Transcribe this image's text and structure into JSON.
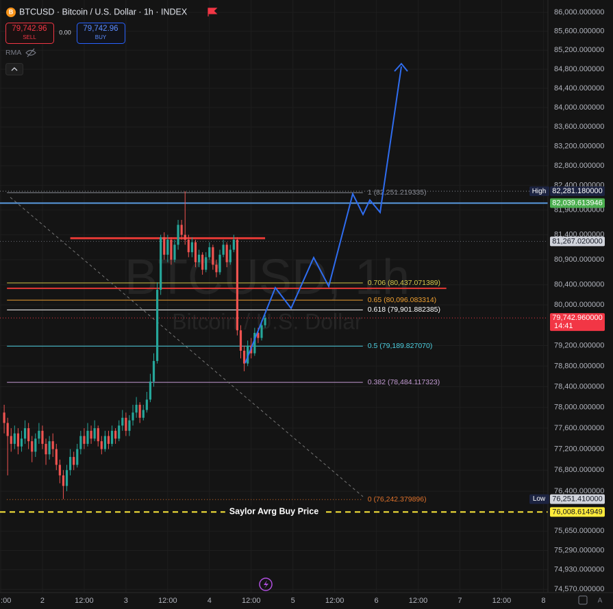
{
  "header": {
    "title": "BTCUSD · Bitcoin / U.S. Dollar · 1h · INDEX",
    "icon": "B",
    "sell": {
      "price": "79,742.96",
      "label": "SELL"
    },
    "spread": "0.00",
    "buy": {
      "price": "79,742.96",
      "label": "BUY"
    },
    "indicator": "RMA",
    "watermark": "BTCUSD, 1h",
    "watermark_sub": "Bitcoin / U.S. Dollar",
    "corner": "A"
  },
  "chart_data": {
    "type": "candlestick",
    "log_scale": true,
    "grid": true,
    "up_color": "#26a69a",
    "down_color": "#ef5350",
    "ylim": [
      74510,
      86264
    ],
    "xlim": [
      -12.2,
      145.3
    ],
    "yticks": [
      {
        "value": 86000,
        "label": "86,000.000000"
      },
      {
        "value": 85600,
        "label": "85,600.000000"
      },
      {
        "value": 85200,
        "label": "85,200.000000"
      },
      {
        "value": 84800,
        "label": "84,800.000000"
      },
      {
        "value": 84400,
        "label": "84,400.000000"
      },
      {
        "value": 84000,
        "label": "84,000.000000"
      },
      {
        "value": 83600,
        "label": "83,600.000000"
      },
      {
        "value": 83200,
        "label": "83,200.000000"
      },
      {
        "value": 82800,
        "label": "82,800.000000"
      },
      {
        "value": 82400,
        "label": "82,400.000000"
      },
      {
        "value": 81900,
        "label": "81,900.000000"
      },
      {
        "value": 81400,
        "label": "81,400.000000"
      },
      {
        "value": 80900,
        "label": "80,900.000000"
      },
      {
        "value": 80400,
        "label": "80,400.000000"
      },
      {
        "value": 80000,
        "label": "80,000.000000"
      },
      {
        "value": 79200,
        "label": "79,200.000000"
      },
      {
        "value": 78800,
        "label": "78,800.000000"
      },
      {
        "value": 78400,
        "label": "78,400.000000"
      },
      {
        "value": 78000,
        "label": "78,000.000000"
      },
      {
        "value": 77600,
        "label": "77,600.000000"
      },
      {
        "value": 77200,
        "label": "77,200.000000"
      },
      {
        "value": 76800,
        "label": "76,800.000000"
      },
      {
        "value": 76400,
        "label": "76,400.000000"
      },
      {
        "value": 75650,
        "label": "75,650.000000"
      },
      {
        "value": 75290,
        "label": "75,290.000000"
      },
      {
        "value": 74930,
        "label": "74,930.000000"
      },
      {
        "value": 74570,
        "label": "74,570.000000"
      }
    ],
    "xticks": [
      {
        "value": -12,
        "label": ":00"
      },
      {
        "value": 0,
        "label": "2"
      },
      {
        "value": 12,
        "label": "12:00"
      },
      {
        "value": 24,
        "label": "3"
      },
      {
        "value": 36,
        "label": "12:00"
      },
      {
        "value": 48,
        "label": "4"
      },
      {
        "value": 60,
        "label": "12:00"
      },
      {
        "value": 72,
        "label": "5"
      },
      {
        "value": 84,
        "label": "12:00"
      },
      {
        "value": 96,
        "label": "6"
      },
      {
        "value": 108,
        "label": "12:00"
      },
      {
        "value": 120,
        "label": "7"
      },
      {
        "value": 132,
        "label": "12:00"
      },
      {
        "value": 144,
        "label": "8"
      }
    ],
    "x": [
      -11,
      -10,
      -9,
      -8,
      -7,
      -6,
      -5,
      -4,
      -3,
      -2,
      -1,
      0,
      1,
      2,
      3,
      4,
      5,
      6,
      7,
      8,
      9,
      10,
      11,
      12,
      13,
      14,
      15,
      16,
      17,
      18,
      19,
      20,
      21,
      22,
      23,
      24,
      25,
      26,
      27,
      28,
      29,
      30,
      31,
      32,
      33,
      34,
      35,
      36,
      37,
      38,
      39,
      40,
      41,
      42,
      43,
      44,
      45,
      46,
      47,
      48,
      49,
      50,
      51,
      52,
      53,
      54,
      55,
      56,
      57,
      58,
      59,
      60,
      61,
      62,
      63,
      64
    ],
    "open": [
      77900,
      77700,
      77450,
      77300,
      77500,
      77250,
      77400,
      77600,
      77350,
      77150,
      77400,
      77550,
      77300,
      77100,
      77350,
      77200,
      76900,
      76700,
      76500,
      76800,
      77050,
      76900,
      77200,
      77450,
      77300,
      77550,
      77400,
      77600,
      77350,
      77200,
      77450,
      77300,
      77550,
      77400,
      77650,
      77800,
      77550,
      77750,
      77900,
      78050,
      77800,
      77950,
      78150,
      78500,
      78900,
      80300,
      81350,
      81000,
      81300,
      80900,
      81200,
      81600,
      81400,
      81300,
      81050,
      81250,
      80850,
      81000,
      80700,
      80950,
      81150,
      80800,
      80650,
      81000,
      81200,
      80850,
      81100,
      81300,
      79500,
      79100,
      78850,
      79200,
      79050,
      79450,
      79350,
      79600
    ],
    "high": [
      78050,
      77800,
      77600,
      77650,
      77600,
      77550,
      77750,
      77700,
      77450,
      77500,
      77700,
      77650,
      77400,
      77450,
      77500,
      77300,
      77000,
      76800,
      76900,
      77200,
      77150,
      77300,
      77550,
      77600,
      77700,
      77650,
      77750,
      77650,
      77450,
      77550,
      77550,
      77650,
      77600,
      77750,
      77950,
      77900,
      77850,
      78050,
      78200,
      78100,
      78050,
      78300,
      78650,
      79050,
      80450,
      81400,
      81450,
      81400,
      81350,
      81300,
      81700,
      81700,
      82281.18,
      81400,
      81350,
      81300,
      81100,
      81050,
      81050,
      81250,
      81200,
      80900,
      81100,
      81300,
      81250,
      81200,
      81400,
      81350,
      79600,
      79200,
      79300,
      79350,
      79550,
      79550,
      79700,
      79800
    ],
    "low": [
      77500,
      76700,
      77150,
      77200,
      77100,
      77150,
      77300,
      77200,
      76950,
      77050,
      77300,
      77200,
      76900,
      77000,
      77050,
      76800,
      76550,
      76251.41,
      76400,
      76700,
      76800,
      76850,
      77100,
      77200,
      77250,
      77300,
      77350,
      77250,
      77100,
      77150,
      77200,
      77250,
      77300,
      77350,
      77550,
      77450,
      77450,
      77650,
      77800,
      77700,
      77750,
      77900,
      78100,
      78400,
      78850,
      80200,
      80900,
      80850,
      80800,
      80850,
      81100,
      81300,
      81200,
      80950,
      80950,
      80750,
      80750,
      80600,
      80650,
      80900,
      80700,
      80550,
      80600,
      80950,
      80750,
      80800,
      81050,
      79400,
      78950,
      78700,
      78800,
      78950,
      79000,
      79250,
      79300,
      79550
    ],
    "close": [
      77700,
      77450,
      77300,
      77500,
      77250,
      77400,
      77600,
      77350,
      77150,
      77400,
      77550,
      77300,
      77100,
      77350,
      77200,
      76900,
      76700,
      76500,
      76800,
      77050,
      76900,
      77200,
      77450,
      77300,
      77550,
      77400,
      77600,
      77350,
      77200,
      77450,
      77300,
      77550,
      77400,
      77650,
      77800,
      77550,
      77750,
      77900,
      78050,
      77800,
      77950,
      78150,
      78500,
      78900,
      80300,
      81350,
      81000,
      81300,
      80900,
      81200,
      81600,
      81400,
      81300,
      81050,
      81250,
      80850,
      81000,
      80700,
      80950,
      81150,
      80800,
      80650,
      81000,
      81200,
      80850,
      81100,
      81300,
      79500,
      79100,
      78850,
      79200,
      79050,
      79450,
      79350,
      79600,
      79742.96
    ],
    "fib": [
      {
        "value": 82251.219335,
        "label": "1 (82,251.219335)",
        "color": "#8a8d96",
        "style": "solid"
      },
      {
        "value": 80437.071389,
        "label": "0.706 (80,437.071389)",
        "color": "#d6c94a",
        "style": "solid"
      },
      {
        "value": 80096.083314,
        "label": "0.65 (80,096.083314)",
        "color": "#f0a030",
        "style": "solid"
      },
      {
        "value": 79901.882385,
        "label": "0.618 (79,901.882385)",
        "color": "#ffffff",
        "style": "solid"
      },
      {
        "value": 79189.82707,
        "label": "0.5 (79,189.827070)",
        "color": "#4dd0e1",
        "style": "solid"
      },
      {
        "value": 78484.117323,
        "label": "0.382 (78,484.117323)",
        "color": "#c39bd3",
        "style": "solid"
      },
      {
        "value": 76242.379896,
        "label": "0 (76,242.379896)",
        "color": "#e0722b",
        "style": "dotted"
      }
    ],
    "fib_from": -10.2,
    "fib_to": 92.1,
    "hlines": [
      {
        "value": 82281.18,
        "color": "#8a8d96",
        "style": "dotted",
        "tag": "High",
        "label": "82,281.180000",
        "label_color": "#1c2340",
        "label_text": "#ffffff"
      },
      {
        "value": 82039.613946,
        "color": "#5a9be0",
        "style": "solid",
        "width": 2,
        "label": "82,039.613946",
        "label_color": "#4caf50",
        "label_text": "#ffffff"
      },
      {
        "value": 81267.02,
        "color": "#6a6d76",
        "style": "dotted",
        "label": "81,267.020000",
        "label_color": "#d1d4dc",
        "label_text": "#131722"
      },
      {
        "value": 81330,
        "color": "#e53935",
        "style": "solid",
        "width": 3,
        "from": 8,
        "to": 64
      },
      {
        "value": 80330,
        "color": "#e53935",
        "style": "solid",
        "width": 2,
        "from": -10.2,
        "to": 116.1
      },
      {
        "value": 79742.96,
        "color": "#f23645",
        "style": "dotted",
        "label": "79,742.960000",
        "sub": "14:41",
        "label_color": "#f23645",
        "label_text": "#ffffff"
      },
      {
        "value": 76251.41,
        "style": "none",
        "tag": "Low",
        "label": "76,251.410000",
        "label_color": "#d1d4dc",
        "label_text": "#131722"
      },
      {
        "value": 76008.614949,
        "color": "#ffeb3b",
        "style": "dashed",
        "width": 2,
        "label": "76,008.614949",
        "label_color": "#ffeb3b",
        "label_text": "#131722",
        "annotation": "Saylor Avrg Buy Price"
      }
    ]
  }
}
